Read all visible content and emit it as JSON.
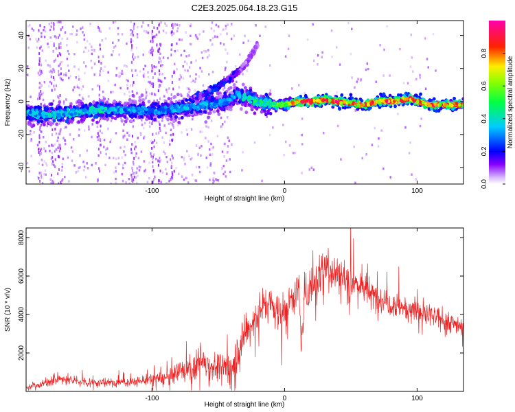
{
  "title": "C2E3.2025.064.18.23.G15",
  "chart_data": [
    {
      "type": "heatmap",
      "xlabel": "Height of straight line (km)",
      "ylabel": "Frequency (Hz)",
      "xlim": [
        -195,
        135
      ],
      "ylim": [
        -50,
        49
      ],
      "xticks": [
        -100,
        0,
        100
      ],
      "xtick_labels": [
        "-100",
        "0",
        "100"
      ],
      "yticks": [
        -40,
        -20,
        0,
        20,
        40
      ],
      "ytick_labels": [
        "-40",
        "-20",
        "0",
        "20",
        "40"
      ],
      "grid": false,
      "colorbar": {
        "label": "Normalized spectral amplitude",
        "range": [
          0,
          1
        ],
        "ticks": [
          0.0,
          0.2,
          0.4,
          0.6,
          0.8
        ],
        "tick_labels": [
          "0.0",
          "0.2",
          "0.4",
          "0.6",
          "0.8"
        ],
        "colormap": "rainbow (white-violet-blue-cyan-green-yellow-red-magenta)"
      },
      "main_trace": {
        "x": [
          -195,
          -180,
          -160,
          -140,
          -120,
          -100,
          -80,
          -60,
          -45,
          -35,
          -25,
          -15,
          -5,
          0,
          10,
          20,
          30,
          40,
          50,
          60,
          70,
          80,
          90,
          95,
          100,
          110,
          120,
          135
        ],
        "freq_hz": [
          -7,
          -8,
          -7,
          -5,
          -5,
          -6,
          -4,
          -2,
          0,
          4,
          1,
          -1,
          -2,
          -2,
          0,
          0,
          1,
          0,
          -1,
          -2,
          0,
          0,
          1,
          2,
          0,
          -2,
          -2,
          -2
        ],
        "amplitude": [
          0.35,
          0.4,
          0.4,
          0.4,
          0.35,
          0.3,
          0.35,
          0.35,
          0.3,
          0.35,
          0.45,
          0.5,
          0.6,
          0.55,
          0.85,
          0.9,
          0.85,
          0.9,
          0.8,
          0.9,
          0.85,
          0.9,
          0.85,
          0.9,
          0.85,
          0.85,
          0.85,
          0.75
        ]
      },
      "secondary_trace": {
        "x": [
          -70,
          -60,
          -50,
          -45,
          -40,
          -35,
          -30,
          -25,
          -20
        ],
        "freq_hz": [
          2,
          5,
          9,
          12,
          15,
          18,
          22,
          28,
          35
        ],
        "amplitude": [
          0.2,
          0.25,
          0.2,
          0.2,
          0.15,
          0.15,
          0.1,
          0.1,
          0.08
        ]
      }
    },
    {
      "type": "line",
      "xlabel": "Height of straight line (km)",
      "ylabel": "SNR (10 * v/v)",
      "xlim": [
        -195,
        135
      ],
      "ylim": [
        0,
        8500
      ],
      "xticks": [
        -100,
        0,
        100
      ],
      "xtick_labels": [
        "-100",
        "0",
        "100"
      ],
      "yticks": [
        2000,
        4000,
        6000,
        8000
      ],
      "ytick_labels": [
        "2000",
        "4000",
        "6000",
        "8000"
      ],
      "grid": false,
      "series": [
        {
          "color": "#ee2222",
          "x": [
            -195,
            -185,
            -180,
            -170,
            -160,
            -150,
            -140,
            -130,
            -120,
            -110,
            -100,
            -90,
            -85,
            -80,
            -70,
            -65,
            -60,
            -55,
            -50,
            -45,
            -40,
            -35,
            -30,
            -25,
            -20,
            -15,
            -10,
            -5,
            0,
            5,
            10,
            13,
            15,
            20,
            25,
            30,
            35,
            40,
            45,
            50,
            55,
            60,
            65,
            70,
            75,
            80,
            85,
            90,
            95,
            100,
            105,
            110,
            115,
            120,
            125,
            130,
            135
          ],
          "y": [
            200,
            350,
            450,
            650,
            550,
            500,
            450,
            450,
            480,
            520,
            620,
            700,
            800,
            1000,
            1200,
            1500,
            1600,
            1300,
            1200,
            1300,
            1200,
            2200,
            2900,
            3400,
            4200,
            4500,
            4600,
            4200,
            3900,
            5000,
            5400,
            2500,
            4800,
            5600,
            6000,
            6600,
            6300,
            6200,
            5900,
            5700,
            5600,
            5400,
            5000,
            4900,
            4800,
            4600,
            4500,
            4400,
            4300,
            4200,
            4000,
            3900,
            3800,
            3700,
            3600,
            3500,
            3400
          ],
          "spread": [
            150,
            200,
            250,
            300,
            300,
            250,
            250,
            250,
            250,
            300,
            350,
            400,
            450,
            600,
            800,
            900,
            900,
            800,
            800,
            900,
            900,
            1100,
            1100,
            1100,
            1000,
            1000,
            1100,
            1100,
            1100,
            1200,
            1100,
            600,
            1100,
            1100,
            1200,
            1200,
            1200,
            1100,
            1100,
            1000,
            1000,
            1000,
            900,
            900,
            800,
            800,
            800,
            750,
            700,
            700,
            700,
            650,
            650,
            600,
            600,
            600,
            550
          ]
        }
      ]
    }
  ]
}
